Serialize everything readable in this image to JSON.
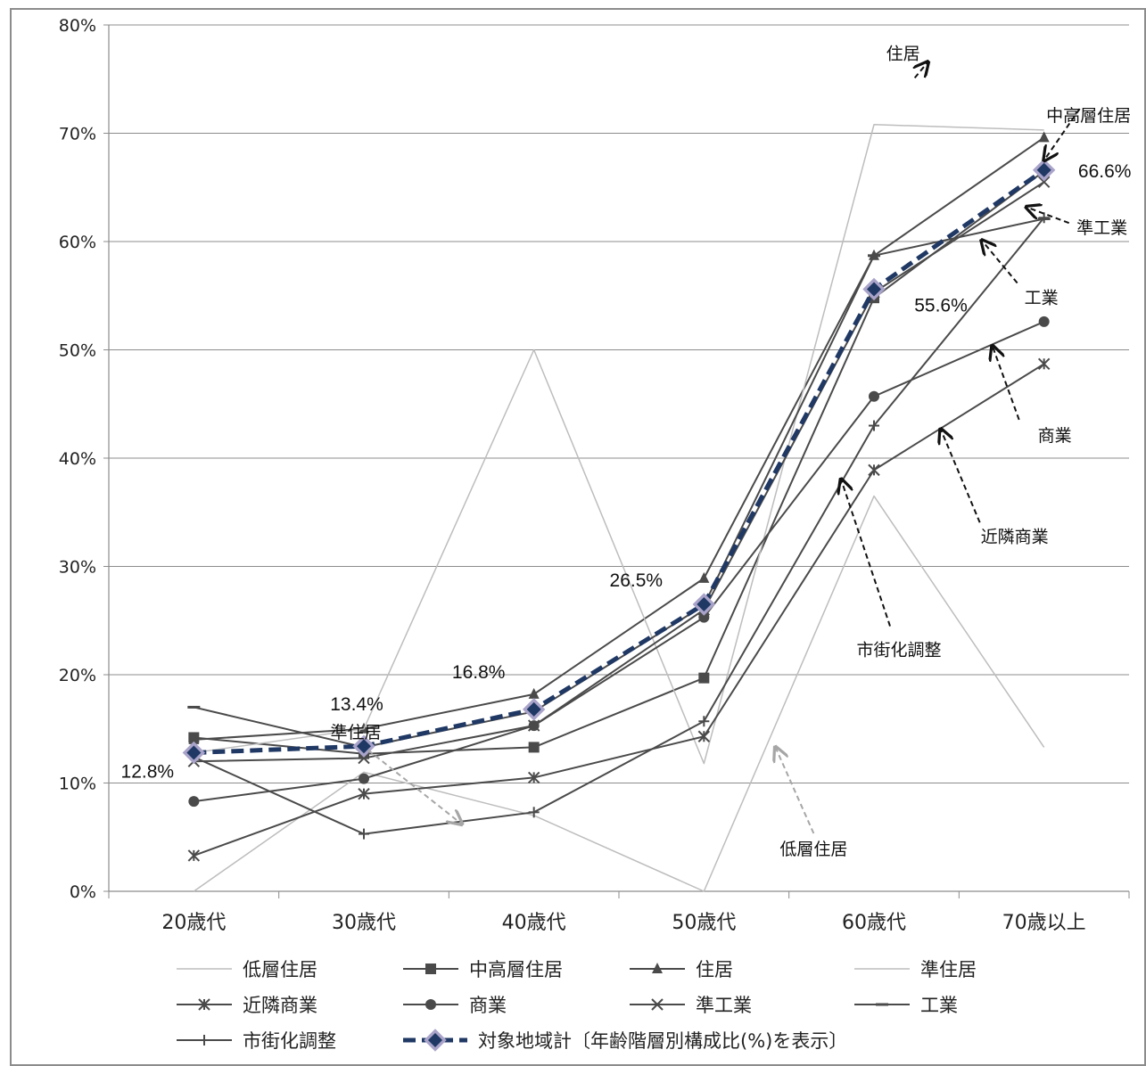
{
  "chart_data": {
    "type": "line",
    "categories": [
      "20歳代",
      "30歳代",
      "40歳代",
      "50歳代",
      "60歳代",
      "70歳以上"
    ],
    "ylim": [
      0,
      80
    ],
    "ytick_step": 10,
    "ytick_labels": [
      "0%",
      "10%",
      "20%",
      "30%",
      "40%",
      "50%",
      "60%",
      "70%",
      "80%"
    ],
    "grid": true,
    "legend_position": "bottom",
    "series": [
      {
        "name": "低層住居",
        "values": [
          0,
          11,
          7,
          0,
          36.5,
          13.3
        ],
        "color": "#bdbdbd",
        "marker": "none",
        "width": 1.5
      },
      {
        "name": "中高層住居",
        "values": [
          14.2,
          12.7,
          13.3,
          19.7,
          54.8,
          66.5
        ],
        "color": "#4a4a4a",
        "marker": "square",
        "width": 2
      },
      {
        "name": "住居",
        "values": [
          14,
          15,
          18.2,
          28.9,
          58.7,
          69.6
        ],
        "color": "#4a4a4a",
        "marker": "triangle",
        "width": 2
      },
      {
        "name": "準住居",
        "values": [
          12.8,
          15,
          50,
          11.8,
          70.8,
          70.3
        ],
        "color": "#bdbdbd",
        "marker": "none",
        "width": 1.5
      },
      {
        "name": "近隣商業",
        "values": [
          3.3,
          9,
          10.5,
          14.3,
          38.9,
          48.7
        ],
        "color": "#4a4a4a",
        "marker": "asterisk",
        "width": 2
      },
      {
        "name": "商業",
        "values": [
          8.3,
          10.4,
          15.3,
          25.3,
          45.7,
          52.6
        ],
        "color": "#4a4a4a",
        "marker": "circle",
        "width": 2
      },
      {
        "name": "準工業",
        "values": [
          12,
          12.3,
          15.3,
          26,
          55.3,
          65.5
        ],
        "color": "#4a4a4a",
        "marker": "x",
        "width": 2
      },
      {
        "name": "工業",
        "values": [
          17,
          13.3,
          16.6,
          26.4,
          58.7,
          62.1
        ],
        "color": "#4a4a4a",
        "marker": "dash",
        "width": 2
      },
      {
        "name": "市街化調整",
        "values": [
          12.4,
          5.3,
          7.3,
          15.7,
          43,
          62.2
        ],
        "color": "#4a4a4a",
        "marker": "plus",
        "width": 2
      },
      {
        "name": "対象地域計〔年齢階層別構成比(%)を表示〕",
        "values": [
          12.8,
          13.4,
          16.8,
          26.5,
          55.6,
          66.6
        ],
        "color": "#1f3864",
        "marker": "diamond",
        "width": 5,
        "dashed": true
      }
    ],
    "data_labels": [
      "12.8%",
      "13.4%",
      "16.8%",
      "26.5%",
      "55.6%",
      "66.6%"
    ],
    "annotations": [
      {
        "text": "住居",
        "target_series": "住居",
        "target_index": 5
      },
      {
        "text": "中高層住居",
        "target_series": "中高層住居",
        "target_index": 5
      },
      {
        "text": "準工業",
        "target_series": "準工業",
        "target_index": 5
      },
      {
        "text": "工業",
        "target_series": "工業",
        "target_index": 5
      },
      {
        "text": "商業",
        "target_series": "商業",
        "target_index": 5
      },
      {
        "text": "近隣商業",
        "target_series": "近隣商業",
        "target_index": 5
      },
      {
        "text": "市街化調整",
        "target_series": "市街化調整",
        "target_index": 4
      },
      {
        "text": "準住居",
        "target_series": "準住居",
        "target_index": 1
      },
      {
        "text": "低層住居",
        "target_series": "低層住居",
        "target_index": 3
      }
    ]
  }
}
